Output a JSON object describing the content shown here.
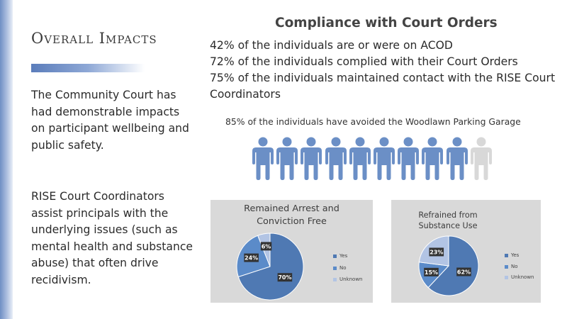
{
  "slide": {
    "title": "Overall Impacts",
    "intro_paragraph": "The Community Court has had demonstrable impacts on participant wellbeing and public safety.",
    "second_paragraph": "RISE Court Coordinators assist principals with the underlying issues (such as mental health and substance abuse) that often drive recidivism."
  },
  "compliance": {
    "heading": "Compliance with Court Orders",
    "stat_1": "42% of the individuals are or were on ACOD",
    "stat_2": "72% of the individuals complied with their Court Orders",
    "stat_3_line1": "75% of the individuals maintained contact with the RISE Court",
    "stat_3_line2": "Coordinators",
    "garage_text": "85% of the individuals have avoided the Woodlawn Parking Garage"
  },
  "people_icons": {
    "total": 10,
    "filled": 9,
    "filled_color": "#6b8fc6",
    "empty_color": "#d8d8d8"
  },
  "colors": {
    "yes": "#4f79b3",
    "no": "#5b8bc9",
    "unknown": "#b2c4e4",
    "card_bg": "#d9d9d9"
  },
  "chart_data": [
    {
      "type": "pie",
      "title_line1": "Remained Arrest and",
      "title_line2": "Conviction Free",
      "categories": [
        "Yes",
        "No",
        "Unknown"
      ],
      "values": [
        70,
        24,
        6
      ],
      "labels": [
        "70%",
        "24%",
        "6%"
      ],
      "legend_position": "right"
    },
    {
      "type": "pie",
      "title_line1": "Refrained from",
      "title_line2": "Substance Use",
      "categories": [
        "Yes",
        "No",
        "Unknown"
      ],
      "values": [
        62,
        15,
        23
      ],
      "labels": [
        "62%",
        "15%",
        "23%"
      ],
      "legend_position": "right"
    }
  ]
}
